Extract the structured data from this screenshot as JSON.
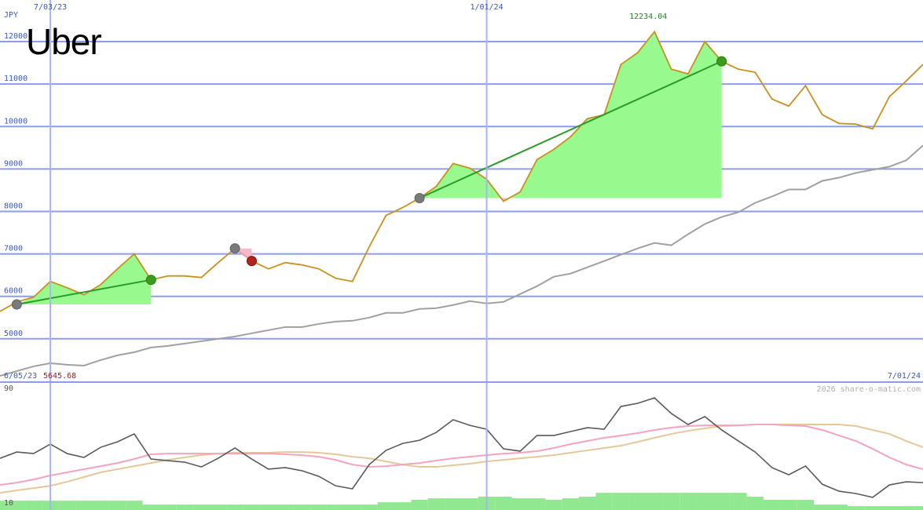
{
  "chart_data": [
    {
      "type": "line",
      "logo": "Uber",
      "y_unit": "JPY",
      "x_range_labels": [
        "6/05/23",
        "7/01/24"
      ],
      "x": [
        1,
        2,
        3,
        4,
        5,
        6,
        7,
        8,
        9,
        10,
        11,
        12,
        13,
        14,
        15,
        16,
        17,
        18,
        19,
        20,
        21,
        22,
        23,
        24,
        25,
        26,
        27,
        28,
        29,
        30,
        31,
        32,
        33,
        34,
        35,
        36,
        37,
        38,
        39,
        40,
        41,
        42,
        43,
        44,
        45,
        46,
        47,
        48,
        49,
        50,
        51,
        52,
        53,
        54,
        55,
        56
      ],
      "xlim": [
        1,
        56
      ],
      "xticks": [
        {
          "value": 4,
          "label": "7/03/23"
        },
        {
          "value": 30,
          "label": "1/01/24"
        }
      ],
      "ylim": [
        3980,
        12980
      ],
      "yticks": [
        5000,
        6000,
        7000,
        8000,
        9000,
        10000,
        11000,
        12000
      ],
      "grid": true,
      "series": [
        {
          "color": "#c8901e",
          "values": [
            5645.68,
            5869,
            5980,
            6351,
            6203,
            6036,
            6277,
            6647,
            6999,
            6388,
            6481,
            6481,
            6444,
            6795,
            7129,
            6833,
            6647,
            6795,
            6740,
            6647,
            6425,
            6351,
            7166,
            7906,
            8092,
            8314,
            8592,
            9129,
            9018,
            8759,
            8240,
            8462,
            9222,
            9462,
            9759,
            10185,
            10277,
            11462,
            11740,
            12234.04,
            11351,
            11240,
            12000,
            11536,
            11351,
            11277,
            10647,
            10481,
            10962,
            10277,
            10073,
            10055,
            9944,
            10703,
            11073,
            11462
          ]
        },
        {
          "color": "#a0a0a0",
          "values": [
            4128,
            4240,
            4351,
            4425,
            4388,
            4369,
            4499,
            4610,
            4684,
            4795,
            4832,
            4888,
            4943,
            4999,
            5054,
            5129,
            5203,
            5277,
            5277,
            5351,
            5406,
            5425,
            5499,
            5610,
            5610,
            5703,
            5721,
            5795,
            5888,
            5832,
            5869,
            6055,
            6240,
            6462,
            6536,
            6684,
            6832,
            6981,
            7129,
            7258,
            7203,
            7462,
            7703,
            7869,
            7981,
            8203,
            8351,
            8518,
            8518,
            8721,
            8796,
            8907,
            8981,
            9055,
            9203,
            9555
          ]
        }
      ],
      "trades": [
        {
          "x": [
            2,
            10
          ],
          "price": [
            5810,
            6388
          ]
        },
        {
          "x": [
            15,
            16
          ],
          "price": [
            7129,
            6833
          ]
        },
        {
          "x": [
            26,
            44
          ],
          "price": [
            8314,
            11536
          ]
        }
      ]
    },
    {
      "type": "line",
      "watermark": "2026 share-o-matic.com",
      "ylim": [
        5.1,
        94.4
      ],
      "yticks": [
        10,
        90
      ],
      "volume": {
        "color": "#90e890",
        "values": [
          11.6,
          11.6,
          11.6,
          11.6,
          11.6,
          11.6,
          11.6,
          11.6,
          11.6,
          8.9,
          8.9,
          8.9,
          8.9,
          8.9,
          8.9,
          8.9,
          8.9,
          8.9,
          8.9,
          8.9,
          8.9,
          8.9,
          8.9,
          10.5,
          10.5,
          12.2,
          13.3,
          13.3,
          13.3,
          14.4,
          14.4,
          13.3,
          13.3,
          12.2,
          13.3,
          14.4,
          17.1,
          17.1,
          17.1,
          17.1,
          17.1,
          17.1,
          17.1,
          17.1,
          17.1,
          14.4,
          12.2,
          12.2,
          12.2,
          8.9,
          8.9,
          7.8,
          7.8,
          7.8,
          7.8,
          7.8
        ]
      },
      "series": [
        {
          "color": "#e6c898",
          "values": [
            17.1,
            18.8,
            20.4,
            22.0,
            24.8,
            28.1,
            31.4,
            33.6,
            35.7,
            37.9,
            40.1,
            41.8,
            43.4,
            44.5,
            45.1,
            45.1,
            45.1,
            45.6,
            45.6,
            45.1,
            44.0,
            42.3,
            41.2,
            39.0,
            36.8,
            35.2,
            35.2,
            36.3,
            37.4,
            39.0,
            40.1,
            41.2,
            42.3,
            43.4,
            45.1,
            46.7,
            48.4,
            50.0,
            52.7,
            55.5,
            58.2,
            60.4,
            62.1,
            63.7,
            64.2,
            64.8,
            64.8,
            64.8,
            64.8,
            64.8,
            64.8,
            63.7,
            61.0,
            58.2,
            53.3,
            48.9
          ]
        },
        {
          "color": "#f4a4bc",
          "values": [
            22.6,
            24.2,
            26.4,
            29.2,
            31.4,
            33.6,
            35.7,
            37.9,
            40.7,
            44.0,
            44.5,
            44.5,
            44.5,
            44.5,
            44.5,
            44.5,
            44.5,
            44.0,
            43.4,
            42.3,
            40.1,
            36.8,
            35.2,
            35.7,
            36.8,
            37.9,
            39.6,
            41.2,
            42.3,
            43.4,
            44.5,
            45.1,
            46.2,
            48.4,
            51.1,
            53.3,
            55.5,
            57.1,
            58.8,
            61.0,
            62.6,
            63.7,
            64.2,
            64.2,
            64.2,
            64.8,
            64.8,
            64.2,
            63.7,
            61.0,
            57.1,
            53.3,
            47.8,
            41.8,
            36.8,
            33.6
          ]
        },
        {
          "color": "#5a5a5a",
          "values": [
            41.2,
            45.6,
            44.5,
            51.1,
            44.5,
            41.8,
            48.9,
            52.7,
            58.2,
            40.7,
            39.6,
            38.5,
            35.2,
            41.2,
            48.4,
            40.7,
            33.6,
            34.7,
            32.5,
            28.6,
            22.0,
            19.9,
            36.8,
            46.7,
            51.6,
            53.8,
            59.3,
            68.1,
            64.2,
            61.5,
            47.8,
            46.2,
            57.1,
            57.1,
            59.9,
            62.6,
            61.5,
            77.4,
            79.6,
            83.4,
            72.5,
            64.8,
            70.3,
            61.0,
            53.3,
            45.6,
            34.7,
            29.7,
            35.8,
            23.1,
            18.2,
            16.6,
            13.9,
            22.6,
            24.8,
            24.2
          ]
        }
      ]
    }
  ]
}
